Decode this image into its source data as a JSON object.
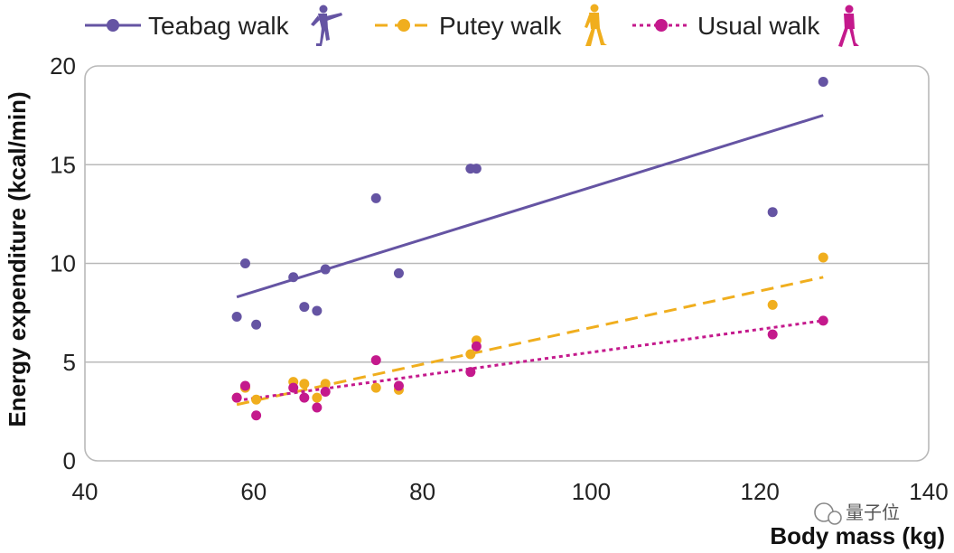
{
  "chart_data": {
    "type": "scatter",
    "title": "",
    "xlabel": "Body mass (kg)",
    "ylabel": "Energy expenditure (kcal/min)",
    "xlim": [
      40,
      140
    ],
    "ylim": [
      0,
      20
    ],
    "xticks": [
      40,
      60,
      80,
      100,
      120,
      140
    ],
    "yticks": [
      0,
      5,
      10,
      15,
      20
    ],
    "grid": "horizontal",
    "legend_position": "top",
    "series": [
      {
        "name": "Teabag walk",
        "color": "#6554a3",
        "line_style": "solid",
        "icon": "teabag-walker-icon",
        "points": [
          [
            58,
            7.3
          ],
          [
            59,
            10.0
          ],
          [
            60.3,
            6.9
          ],
          [
            64.7,
            9.3
          ],
          [
            66,
            7.8
          ],
          [
            67.5,
            7.6
          ],
          [
            68.5,
            9.7
          ],
          [
            74.5,
            13.3
          ],
          [
            77.2,
            9.5
          ],
          [
            85.7,
            14.8
          ],
          [
            86.4,
            14.8
          ],
          [
            121.5,
            12.6
          ],
          [
            127.5,
            19.2
          ]
        ],
        "trend": [
          [
            58,
            8.3
          ],
          [
            127.5,
            17.5
          ]
        ]
      },
      {
        "name": "Putey walk",
        "color": "#f0ae1e",
        "line_style": "dashed",
        "icon": "putey-walker-icon",
        "points": [
          [
            58,
            3.2
          ],
          [
            59,
            3.7
          ],
          [
            60.3,
            3.1
          ],
          [
            64.7,
            4.0
          ],
          [
            66,
            3.9
          ],
          [
            67.5,
            3.2
          ],
          [
            68.5,
            3.9
          ],
          [
            74.5,
            3.7
          ],
          [
            77.2,
            3.6
          ],
          [
            85.7,
            5.4
          ],
          [
            86.4,
            6.1
          ],
          [
            121.5,
            7.9
          ],
          [
            127.5,
            10.3
          ]
        ],
        "trend": [
          [
            58,
            2.85
          ],
          [
            127.5,
            9.3
          ]
        ]
      },
      {
        "name": "Usual walk",
        "color": "#c4198c",
        "line_style": "dotted",
        "icon": "usual-walker-icon",
        "points": [
          [
            58,
            3.2
          ],
          [
            59,
            3.8
          ],
          [
            60.3,
            2.3
          ],
          [
            64.7,
            3.7
          ],
          [
            66,
            3.2
          ],
          [
            67.5,
            2.7
          ],
          [
            68.5,
            3.5
          ],
          [
            74.5,
            5.1
          ],
          [
            77.2,
            3.8
          ],
          [
            85.7,
            4.5
          ],
          [
            86.4,
            5.8
          ],
          [
            121.5,
            6.4
          ],
          [
            127.5,
            7.1
          ]
        ],
        "trend": [
          [
            58,
            3.05
          ],
          [
            127.5,
            7.1
          ]
        ]
      }
    ]
  },
  "watermark": "量子位"
}
